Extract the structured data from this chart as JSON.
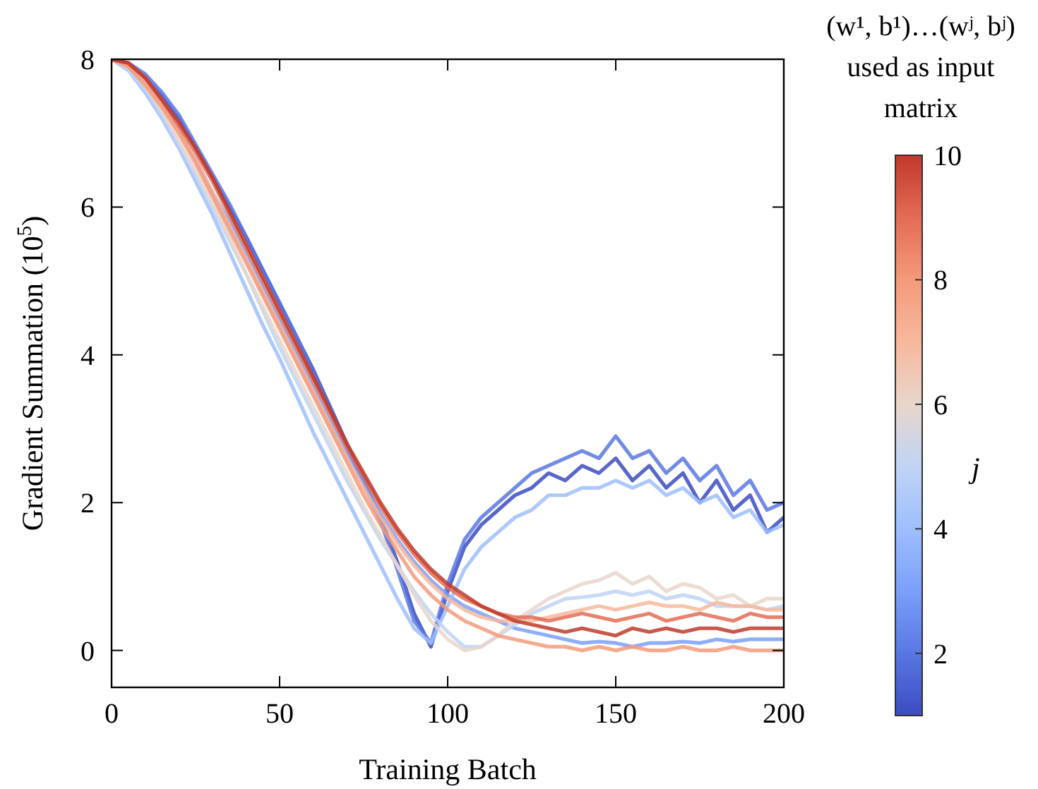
{
  "chart_data": {
    "type": "line",
    "xlabel": "Training Batch",
    "ylabel": "Gradient Summation (10$^{5}$)",
    "clabel": "j",
    "annotations": [
      "(w¹, b¹)…(wʲ, bʲ) used as input matrix"
    ],
    "xlim": [
      0,
      200
    ],
    "xticks": [
      0,
      50,
      100,
      150,
      200
    ],
    "ylim": [
      -0.5,
      8
    ],
    "yticks": [
      0,
      2,
      4,
      6,
      8
    ],
    "clim": [
      1,
      10
    ],
    "cticks": [
      2,
      4,
      6,
      8,
      10
    ],
    "grid": false,
    "line_style": "solid",
    "marker": "none",
    "x": [
      0,
      5,
      10,
      15,
      20,
      25,
      30,
      35,
      40,
      45,
      50,
      55,
      60,
      65,
      70,
      75,
      80,
      85,
      90,
      95,
      100,
      105,
      110,
      115,
      120,
      125,
      130,
      135,
      140,
      145,
      150,
      155,
      160,
      165,
      170,
      175,
      180,
      185,
      190,
      195,
      200
    ],
    "series": [
      {
        "color": "#3b4cc0",
        "values": [
          8,
          7.95,
          7.75,
          7.5,
          7.2,
          6.8,
          6.4,
          6.0,
          5.6,
          5.15,
          4.7,
          4.25,
          3.8,
          3.3,
          2.8,
          2.3,
          1.8,
          1.2,
          0.5,
          0.05,
          0.8,
          1.4,
          1.7,
          1.9,
          2.1,
          2.2,
          2.4,
          2.3,
          2.5,
          2.4,
          2.6,
          2.3,
          2.5,
          2.2,
          2.4,
          2.0,
          2.3,
          1.9,
          2.1,
          1.6,
          1.8
        ]
      },
      {
        "color": "#5977e3",
        "values": [
          8,
          7.95,
          7.8,
          7.55,
          7.25,
          6.85,
          6.45,
          6.05,
          5.6,
          5.15,
          4.7,
          4.25,
          3.75,
          3.25,
          2.75,
          2.25,
          1.75,
          1.1,
          0.4,
          0.1,
          0.9,
          1.5,
          1.8,
          2.0,
          2.2,
          2.4,
          2.5,
          2.6,
          2.7,
          2.6,
          2.9,
          2.6,
          2.7,
          2.4,
          2.6,
          2.3,
          2.5,
          2.1,
          2.3,
          1.9,
          2.0
        ]
      },
      {
        "color": "#7b9ff9",
        "values": [
          8,
          7.9,
          7.7,
          7.4,
          7.05,
          6.65,
          6.2,
          5.8,
          5.35,
          4.9,
          4.45,
          4.0,
          3.55,
          3.1,
          2.65,
          2.25,
          1.85,
          1.5,
          1.2,
          0.95,
          0.75,
          0.6,
          0.5,
          0.4,
          0.3,
          0.25,
          0.2,
          0.15,
          0.1,
          0.12,
          0.1,
          0.05,
          0.1,
          0.1,
          0.12,
          0.1,
          0.15,
          0.12,
          0.15,
          0.15,
          0.15
        ]
      },
      {
        "color": "#9ebeff",
        "values": [
          8,
          7.85,
          7.55,
          7.2,
          6.8,
          6.35,
          5.9,
          5.4,
          4.9,
          4.4,
          3.95,
          3.45,
          2.95,
          2.5,
          2.05,
          1.6,
          1.15,
          0.7,
          0.3,
          0.1,
          0.6,
          1.1,
          1.4,
          1.6,
          1.8,
          1.9,
          2.1,
          2.1,
          2.2,
          2.2,
          2.3,
          2.2,
          2.3,
          2.1,
          2.2,
          2.0,
          2.1,
          1.8,
          1.9,
          1.6,
          1.7
        ]
      },
      {
        "color": "#c0d4f5",
        "values": [
          8,
          7.85,
          7.6,
          7.25,
          6.85,
          6.45,
          6.0,
          5.55,
          5.1,
          4.6,
          4.1,
          3.65,
          3.2,
          2.75,
          2.3,
          1.9,
          1.5,
          1.15,
          0.8,
          0.5,
          0.25,
          0.05,
          0.05,
          0.2,
          0.35,
          0.5,
          0.6,
          0.7,
          0.72,
          0.75,
          0.8,
          0.75,
          0.8,
          0.7,
          0.75,
          0.7,
          0.6,
          0.6,
          0.6,
          0.55,
          0.6
        ]
      },
      {
        "color": "#e8d6cc",
        "values": [
          8,
          7.9,
          7.65,
          7.3,
          6.9,
          6.5,
          6.05,
          5.6,
          5.1,
          4.65,
          4.2,
          3.75,
          3.3,
          2.85,
          2.4,
          1.95,
          1.55,
          1.15,
          0.75,
          0.4,
          0.15,
          0.0,
          0.05,
          0.2,
          0.4,
          0.55,
          0.7,
          0.8,
          0.9,
          0.95,
          1.05,
          0.9,
          1.0,
          0.8,
          0.9,
          0.85,
          0.7,
          0.75,
          0.6,
          0.7,
          0.7
        ]
      },
      {
        "color": "#f7b89c",
        "values": [
          8,
          7.9,
          7.7,
          7.4,
          7.05,
          6.65,
          6.2,
          5.75,
          5.3,
          4.85,
          4.4,
          3.95,
          3.5,
          3.05,
          2.6,
          2.2,
          1.8,
          1.45,
          1.15,
          0.9,
          0.7,
          0.55,
          0.45,
          0.4,
          0.4,
          0.4,
          0.45,
          0.5,
          0.55,
          0.6,
          0.55,
          0.6,
          0.65,
          0.6,
          0.6,
          0.55,
          0.65,
          0.6,
          0.6,
          0.55,
          0.55
        ]
      },
      {
        "color": "#f49a7b",
        "values": [
          8,
          7.9,
          7.65,
          7.35,
          7.0,
          6.6,
          6.15,
          5.7,
          5.25,
          4.8,
          4.35,
          3.9,
          3.45,
          3.0,
          2.55,
          2.1,
          1.7,
          1.35,
          1.0,
          0.75,
          0.55,
          0.4,
          0.3,
          0.2,
          0.15,
          0.1,
          0.05,
          0.05,
          0.0,
          0.05,
          0.0,
          0.05,
          0.0,
          0.0,
          0.05,
          0.0,
          0.0,
          0.05,
          0.0,
          0.0,
          0.0
        ]
      },
      {
        "color": "#e36c55",
        "values": [
          8,
          7.95,
          7.75,
          7.45,
          7.1,
          6.75,
          6.35,
          5.9,
          5.45,
          5.0,
          4.55,
          4.1,
          3.65,
          3.2,
          2.75,
          2.35,
          1.95,
          1.6,
          1.3,
          1.05,
          0.85,
          0.7,
          0.6,
          0.5,
          0.45,
          0.45,
          0.4,
          0.45,
          0.5,
          0.45,
          0.4,
          0.45,
          0.5,
          0.4,
          0.45,
          0.5,
          0.45,
          0.4,
          0.5,
          0.45,
          0.45
        ]
      },
      {
        "color": "#c0392b",
        "values": [
          8,
          7.95,
          7.75,
          7.45,
          7.15,
          6.8,
          6.4,
          5.95,
          5.5,
          5.05,
          4.6,
          4.15,
          3.7,
          3.25,
          2.8,
          2.4,
          2.0,
          1.65,
          1.35,
          1.1,
          0.9,
          0.75,
          0.6,
          0.5,
          0.4,
          0.35,
          0.3,
          0.25,
          0.3,
          0.25,
          0.2,
          0.3,
          0.25,
          0.3,
          0.25,
          0.3,
          0.3,
          0.25,
          0.3,
          0.3,
          0.3
        ]
      }
    ]
  }
}
